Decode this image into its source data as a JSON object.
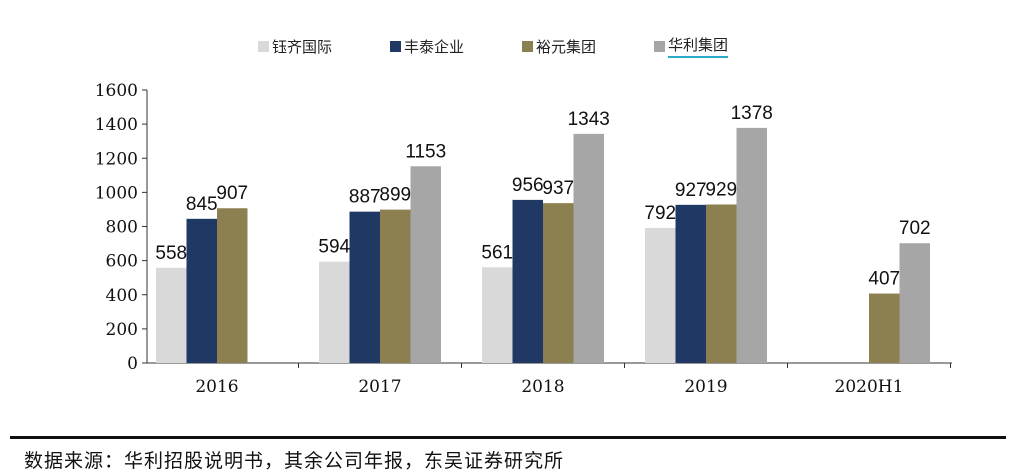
{
  "chart_data": {
    "type": "bar",
    "categories": [
      "2016",
      "2017",
      "2018",
      "2019",
      "2020H1"
    ],
    "series": [
      {
        "name": "钰齐国际",
        "color": "#d9d9d9",
        "values": [
          558,
          594,
          561,
          792,
          null
        ]
      },
      {
        "name": "丰泰企业",
        "color": "#1f3864",
        "values": [
          845,
          887,
          956,
          927,
          null
        ]
      },
      {
        "name": "裕元集团",
        "color": "#8c8050",
        "values": [
          907,
          899,
          937,
          929,
          407
        ]
      },
      {
        "name": "华利集团",
        "color": "#a6a6a6",
        "values": [
          null,
          1153,
          1343,
          1378,
          702
        ]
      }
    ],
    "ylim": [
      0,
      1600
    ],
    "yticks": [
      0,
      200,
      400,
      600,
      800,
      1000,
      1200,
      1400,
      1600
    ],
    "grid": false,
    "legend_position": "top",
    "title": "",
    "xlabel": "",
    "ylabel": ""
  },
  "source": "数据来源：华利招股说明书，其余公司年报，东吴证券研究所"
}
